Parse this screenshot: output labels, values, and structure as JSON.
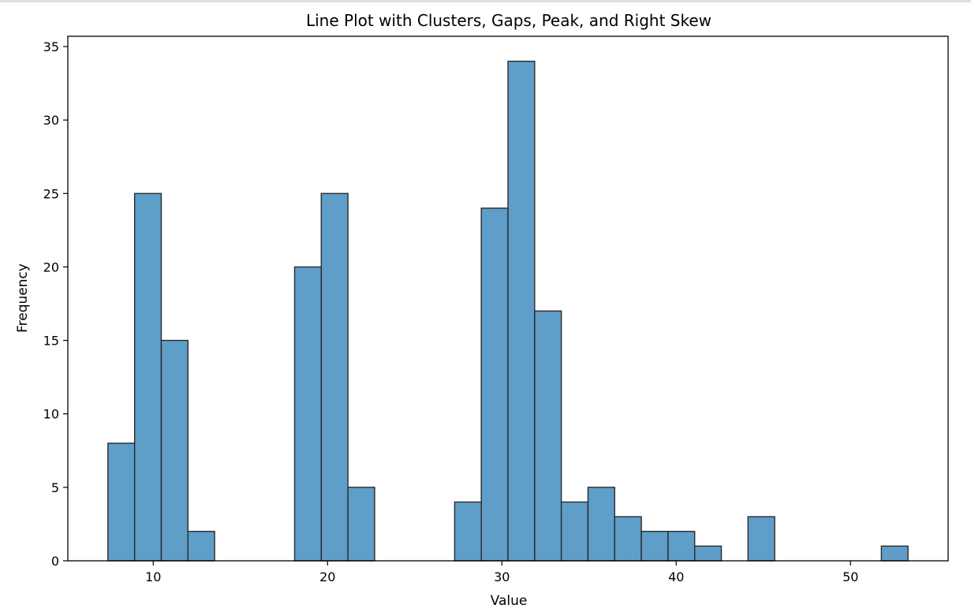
{
  "chart_data": {
    "type": "bar",
    "title": "Line Plot with Clusters, Gaps, Peak, and Right Skew",
    "xlabel": "Value",
    "ylabel": "Frequency",
    "bin_width": 1.53,
    "bins": [
      {
        "start": 7.4,
        "count": 8
      },
      {
        "start": 8.93,
        "count": 25
      },
      {
        "start": 10.46,
        "count": 15
      },
      {
        "start": 11.99,
        "count": 2
      },
      {
        "start": 18.11,
        "count": 20
      },
      {
        "start": 19.64,
        "count": 25
      },
      {
        "start": 21.17,
        "count": 5
      },
      {
        "start": 27.29,
        "count": 4
      },
      {
        "start": 28.82,
        "count": 24
      },
      {
        "start": 30.35,
        "count": 34
      },
      {
        "start": 31.88,
        "count": 17
      },
      {
        "start": 33.41,
        "count": 4
      },
      {
        "start": 34.94,
        "count": 5
      },
      {
        "start": 36.47,
        "count": 3
      },
      {
        "start": 38.0,
        "count": 2
      },
      {
        "start": 39.53,
        "count": 2
      },
      {
        "start": 41.06,
        "count": 1
      },
      {
        "start": 44.12,
        "count": 3
      },
      {
        "start": 51.77,
        "count": 1
      }
    ],
    "xlim": [
      5.1,
      55.6
    ],
    "ylim": [
      0,
      35.7
    ],
    "xticks": [
      10,
      20,
      30,
      40,
      50
    ],
    "yticks": [
      0,
      5,
      10,
      15,
      20,
      25,
      30,
      35
    ],
    "bar_color": "#5f9ec9",
    "edge_color": "#2a2a2a",
    "grid": false
  }
}
